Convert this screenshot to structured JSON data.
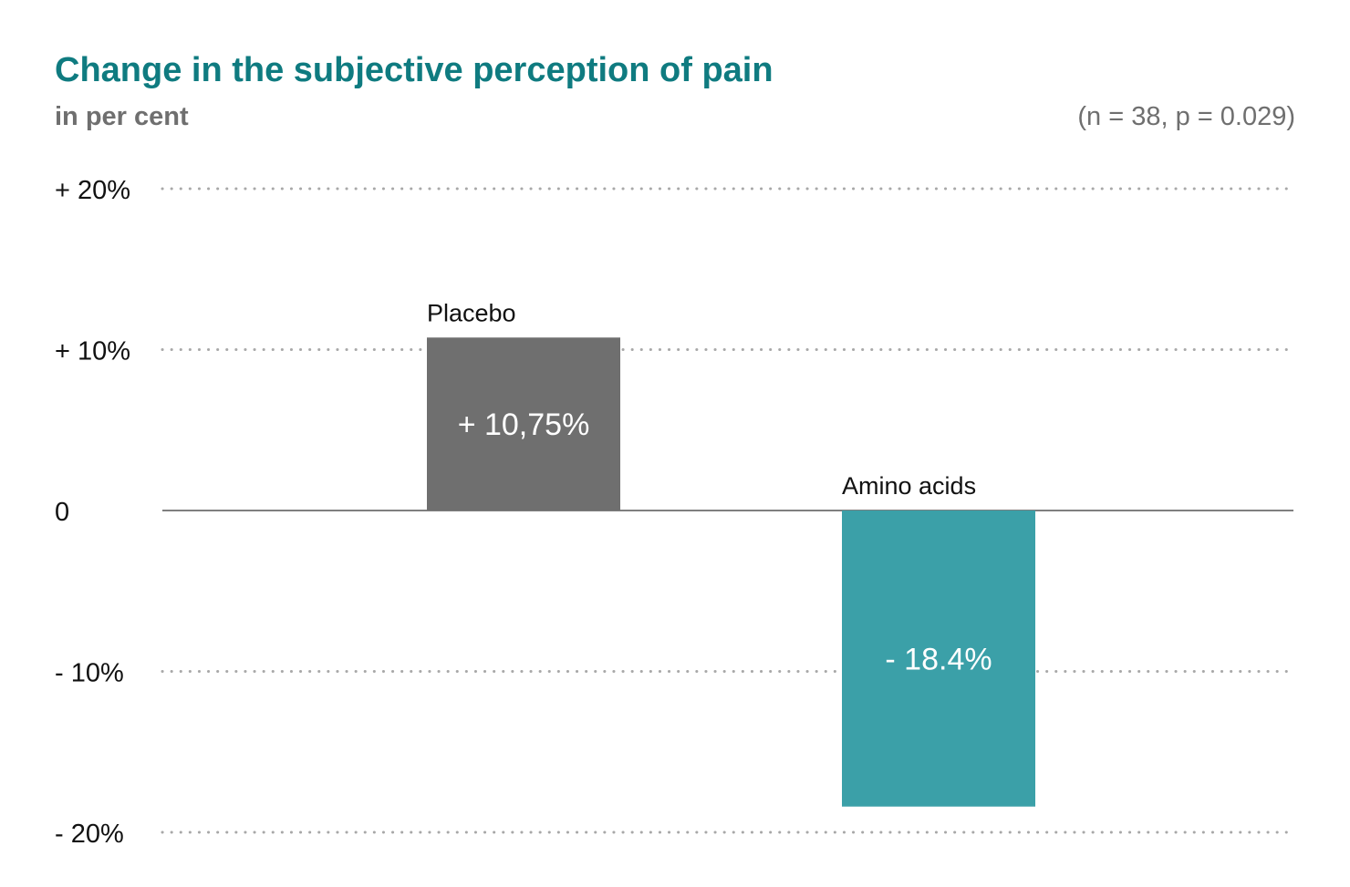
{
  "chart_data": {
    "type": "bar",
    "title": "Change in the subjective perception of pain",
    "subtitle": "in per cent",
    "annotation": "(n = 38, p = 0.029)",
    "categories": [
      "Placebo",
      "Amino acids"
    ],
    "values": [
      10.75,
      -18.4
    ],
    "value_labels": [
      "+ 10,75%",
      "- 18.4%"
    ],
    "colors": [
      "#6f6f6f",
      "#3ba0a8"
    ],
    "ylim": [
      -20,
      20
    ],
    "yticks": [
      {
        "value": 20,
        "label": "+ 20%"
      },
      {
        "value": 10,
        "label": "+ 10%"
      },
      {
        "value": 0,
        "label": "0"
      },
      {
        "value": -10,
        "label": "- 10%"
      },
      {
        "value": -20,
        "label": "- 20%"
      }
    ],
    "grid": "dotted",
    "legend": "none"
  }
}
